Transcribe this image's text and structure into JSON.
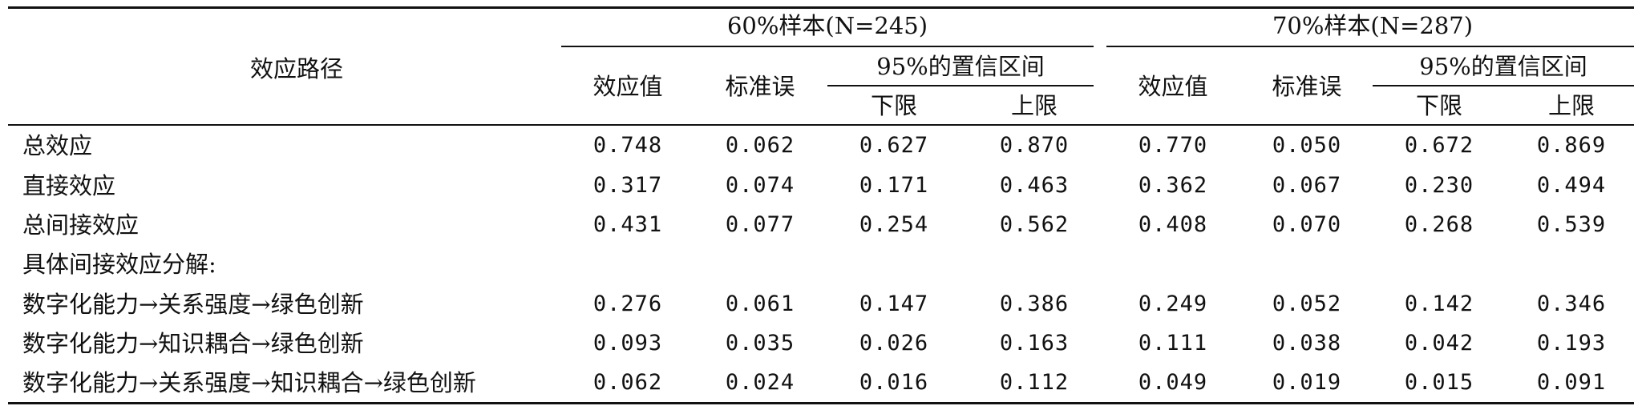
{
  "table": {
    "header": {
      "path_label": "效应路径",
      "group1": "60%样本(N=245)",
      "group2": "70%样本(N=287)",
      "effect": "效应值",
      "se": "标准误",
      "ci": "95%的置信区间",
      "lower": "下限",
      "upper": "上限"
    },
    "rows": [
      {
        "label": "总效应",
        "values": [
          "0.748",
          "0.062",
          "0.627",
          "0.870",
          "0.770",
          "0.050",
          "0.672",
          "0.869"
        ]
      },
      {
        "label": "直接效应",
        "values": [
          "0.317",
          "0.074",
          "0.171",
          "0.463",
          "0.362",
          "0.067",
          "0.230",
          "0.494"
        ]
      },
      {
        "label": "总间接效应",
        "values": [
          "0.431",
          "0.077",
          "0.254",
          "0.562",
          "0.408",
          "0.070",
          "0.268",
          "0.539"
        ]
      },
      {
        "label": "具体间接效应分解:",
        "values": [
          "",
          "",
          "",
          "",
          "",
          "",
          "",
          ""
        ]
      },
      {
        "label": "数字化能力→关系强度→绿色创新",
        "values": [
          "0.276",
          "0.061",
          "0.147",
          "0.386",
          "0.249",
          "0.052",
          "0.142",
          "0.346"
        ]
      },
      {
        "label": "数字化能力→知识耦合→绿色创新",
        "values": [
          "0.093",
          "0.035",
          "0.026",
          "0.163",
          "0.111",
          "0.038",
          "0.042",
          "0.193"
        ]
      },
      {
        "label": "数字化能力→关系强度→知识耦合→绿色创新",
        "values": [
          "0.062",
          "0.024",
          "0.016",
          "0.112",
          "0.049",
          "0.019",
          "0.015",
          "0.091"
        ]
      }
    ]
  }
}
